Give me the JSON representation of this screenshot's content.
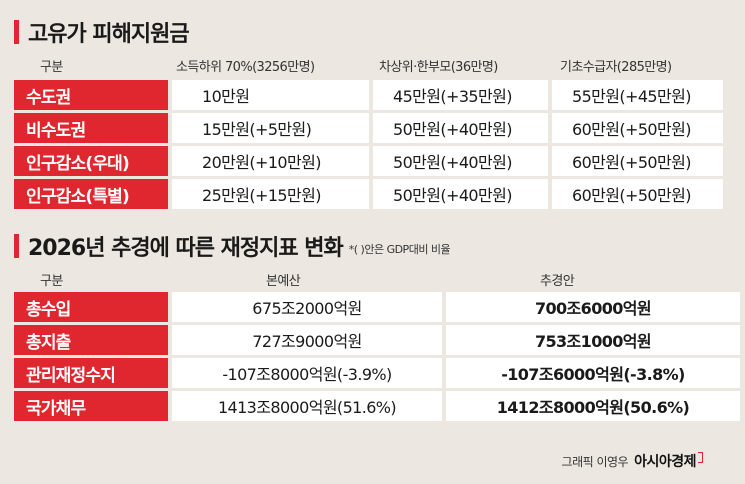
{
  "section1": {
    "title": "고유가 피해지원금",
    "headers": [
      "구분",
      "소득하위 70%(3256만명)",
      "차상위·한부모(36만명)",
      "기초수급자(285만명)"
    ],
    "rows": [
      {
        "label": "수도권",
        "cells": [
          "10만원",
          "45만원(+35만원)",
          "55만원(+45만원)"
        ]
      },
      {
        "label": "비수도권",
        "cells": [
          "15만원(+5만원)",
          "50만원(+40만원)",
          "60만원(+50만원)"
        ]
      },
      {
        "label": "인구감소(우대)",
        "cells": [
          "20만원(+10만원)",
          "50만원(+40만원)",
          "60만원(+50만원)"
        ]
      },
      {
        "label": "인구감소(특별)",
        "cells": [
          "25만원(+15만원)",
          "50만원(+40만원)",
          "60만원(+50만원)"
        ]
      }
    ]
  },
  "section2": {
    "title": "2026년 추경에 따른 재정지표 변화",
    "note": "*(    )안은 GDP대비 비율",
    "headers": [
      "구분",
      "본예산",
      "추경안"
    ],
    "rows": [
      {
        "label": "총수입",
        "cells": [
          "675조2000억원",
          "700조6000억원"
        ]
      },
      {
        "label": "총지출",
        "cells": [
          "727조9000억원",
          "753조1000억원"
        ]
      },
      {
        "label": "관리재정수지",
        "cells": [
          "-107조8000억원(-3.9%)",
          "-107조6000억원(-3.8%)"
        ]
      },
      {
        "label": "국가채무",
        "cells": [
          "1413조8000억원(51.6%)",
          "1412조8000억원(50.6%)"
        ]
      }
    ]
  },
  "footer": {
    "credit": "그래픽 이영우",
    "brand": "아시아경제"
  },
  "colors": {
    "accent": "#e0272f",
    "background": "#ece8e1",
    "cell": "#ffffff"
  }
}
